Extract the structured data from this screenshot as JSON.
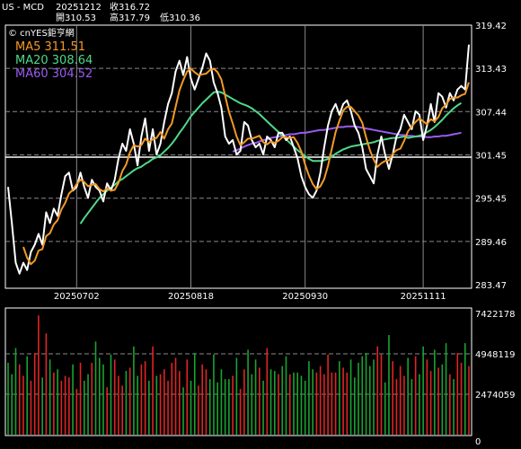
{
  "header": {
    "symbol": "US - MCD",
    "date": "20251212",
    "close_label": "收316.72",
    "open_label": "開310.53",
    "high_label": "高317.79",
    "low_label": "低310.36"
  },
  "brand": "© cnYES鉅亨網",
  "colors": {
    "background": "#000000",
    "price": "#ffffff",
    "ma5": "#f29a27",
    "ma20": "#4fd98a",
    "ma60": "#9a5cf0",
    "vol_up": "#e02424",
    "vol_down": "#1aa331",
    "grid": "#8a8a8a"
  },
  "chart_data": [
    {
      "type": "line",
      "panel": "price",
      "y_ticks": [
        "319.42",
        "313.43",
        "307.44",
        "301.45",
        "295.45",
        "289.46",
        "283.47"
      ],
      "x_ticks": [
        "20250702",
        "20250818",
        "20250930",
        "20251111"
      ],
      "ylim": [
        283.47,
        319.42
      ],
      "legend": [
        {
          "name": "MA5",
          "value": "311.51"
        },
        {
          "name": "MA20",
          "value": "308.64"
        },
        {
          "name": "MA60",
          "value": "304.52"
        }
      ],
      "series": [
        {
          "name": "Close",
          "values": [
            297,
            292,
            286.5,
            285,
            286.5,
            285.5,
            288,
            289,
            290.5,
            289,
            293.5,
            292,
            294,
            293,
            296,
            298.5,
            299,
            296.5,
            297,
            299,
            297,
            295.5,
            298,
            297,
            296.5,
            295,
            297.5,
            296.5,
            298,
            301,
            303,
            302,
            305,
            303,
            300,
            304,
            306.5,
            302,
            305,
            301.5,
            303,
            306,
            308.5,
            310,
            313,
            314.5,
            312.5,
            315,
            312,
            310.5,
            312,
            313.5,
            315.5,
            314.5,
            311.5,
            310,
            308,
            304,
            303,
            303.5,
            301.5,
            302,
            306,
            305.5,
            303.5,
            302.5,
            303,
            301.5,
            304,
            303.5,
            302.5,
            304.5,
            304.5,
            303.5,
            304,
            302.5,
            301,
            298.5,
            297,
            296,
            295.5,
            296.5,
            299,
            302.5,
            305.5,
            307.5,
            308.5,
            307,
            308.5,
            309,
            307.5,
            305.5,
            304.5,
            302.5,
            299.5,
            298.5,
            297.5,
            301.5,
            304,
            301.5,
            299.5,
            301.5,
            304,
            305,
            307,
            306,
            305,
            307.5,
            307,
            303.5,
            305.5,
            308.5,
            306,
            310,
            309.5,
            308,
            310,
            309,
            310.5,
            311,
            310.5,
            316.72
          ]
        },
        {
          "name": "MA5",
          "values": [
            null,
            null,
            null,
            null,
            288.7,
            287.2,
            286.3,
            286.8,
            288.2,
            288.4,
            290.2,
            290.6,
            291.8,
            292.4,
            293.9,
            294.8,
            296.1,
            296.6,
            297.4,
            298,
            297.7,
            297.1,
            297.3,
            297.4,
            296.7,
            296.4,
            296.8,
            296.5,
            296.6,
            297.6,
            299.2,
            300.1,
            301.8,
            302.8,
            302.6,
            302.8,
            303.7,
            303.2,
            303.6,
            303.8,
            304.6,
            303.7,
            305,
            305.8,
            308.1,
            310.4,
            311.8,
            313,
            313.4,
            312.9,
            312.5,
            312.6,
            312.7,
            313.2,
            313.4,
            312.9,
            311.9,
            309.6,
            307.4,
            305.8,
            304,
            302.8,
            303.2,
            303.7,
            303.7,
            303.9,
            304.1,
            303.2,
            302.9,
            303.3,
            303.1,
            303.4,
            303.9,
            303.9,
            303.8,
            303.9,
            303.1,
            301.9,
            300.1,
            298.6,
            297.4,
            296.7,
            297.1,
            298.1,
            299.9,
            302.3,
            304.6,
            306.2,
            307.6,
            308.1,
            308.1,
            307.5,
            306.9,
            305.9,
            303.9,
            302.1,
            300.8,
            299.8,
            300.3,
            300.6,
            300.7,
            301.6,
            302.1,
            302.3,
            303.4,
            304.7,
            305.4,
            306,
            306.5,
            306.1,
            305.7,
            306.4,
            306.1,
            306.7,
            307.9,
            308.4,
            309.2,
            309.4,
            309.4,
            309.7,
            309.9,
            311.5
          ]
        },
        {
          "name": "MA20",
          "values": [
            null,
            null,
            null,
            null,
            null,
            null,
            null,
            null,
            null,
            null,
            null,
            null,
            null,
            null,
            null,
            null,
            null,
            null,
            null,
            291.9,
            292.7,
            293.4,
            294.1,
            294.8,
            295.5,
            296,
            296.5,
            296.9,
            297.3,
            297.8,
            298.1,
            298.5,
            298.9,
            299.3,
            299.6,
            299.8,
            300.2,
            300.5,
            300.9,
            301.1,
            301.4,
            301.9,
            302.4,
            303,
            303.7,
            304.5,
            305.2,
            306,
            306.8,
            307.4,
            308,
            308.6,
            309.1,
            309.6,
            310.1,
            310.2,
            310.1,
            309.8,
            309.5,
            309.2,
            308.9,
            308.6,
            308.4,
            308.2,
            307.9,
            307.5,
            307.1,
            306.6,
            306.1,
            305.6,
            305.1,
            304.6,
            304.1,
            303.6,
            303.1,
            302.6,
            302.1,
            301.7,
            301.3,
            300.9,
            300.6,
            300.6,
            300.6,
            300.7,
            300.9,
            301.2,
            301.6,
            301.9,
            302.2,
            302.4,
            302.6,
            302.7,
            302.8,
            302.9,
            303,
            303.1,
            303.2,
            303.4,
            303.5,
            303.6,
            303.7,
            303.8,
            303.8,
            303.9,
            304,
            303.8,
            303.9,
            304,
            304.1,
            304.3,
            304.6,
            304.9,
            305.3,
            305.8,
            306.3,
            306.9,
            307.4,
            307.9,
            308.3,
            308.64
          ]
        },
        {
          "name": "MA60",
          "values": [
            null,
            null,
            null,
            null,
            null,
            null,
            null,
            null,
            null,
            null,
            null,
            null,
            null,
            null,
            null,
            null,
            null,
            null,
            null,
            null,
            null,
            null,
            null,
            null,
            null,
            null,
            null,
            null,
            null,
            null,
            null,
            null,
            null,
            null,
            null,
            null,
            null,
            null,
            null,
            null,
            null,
            null,
            null,
            null,
            null,
            null,
            null,
            null,
            null,
            null,
            null,
            null,
            null,
            null,
            null,
            null,
            null,
            null,
            null,
            301.9,
            302.1,
            302.3,
            302.6,
            302.8,
            303,
            303.1,
            303.3,
            303.5,
            303.6,
            303.8,
            303.9,
            304,
            304.1,
            304.2,
            304.3,
            304.3,
            304.4,
            304.5,
            304.5,
            304.6,
            304.7,
            304.8,
            304.9,
            304.9,
            305,
            305.1,
            305.2,
            305.3,
            305.3,
            305.4,
            305.4,
            305.4,
            305.3,
            305.2,
            305.1,
            305,
            304.9,
            304.8,
            304.7,
            304.6,
            304.5,
            304.4,
            304.3,
            304.2,
            304.2,
            304.1,
            304.1,
            304,
            304,
            304,
            303.9,
            303.9,
            304,
            304,
            304.1,
            304.1,
            304.2,
            304.3,
            304.4,
            304.52
          ]
        }
      ]
    },
    {
      "type": "bar",
      "panel": "volume",
      "y_ticks": [
        "7422178",
        "4948119",
        "2474059",
        "0"
      ],
      "ylim": [
        0,
        7422178
      ],
      "series": [
        {
          "name": "Volume",
          "values": [
            4400000,
            3700000,
            5300000,
            4300000,
            3600000,
            4800000,
            3300000,
            5000000,
            7300000,
            3500000,
            6200000,
            4600000,
            3800000,
            4000000,
            3300000,
            3600000,
            3500000,
            4300000,
            2800000,
            4400000,
            3300000,
            3700000,
            4400000,
            5700000,
            4700000,
            4300000,
            2900000,
            4900000,
            4600000,
            3600000,
            3000000,
            3900000,
            4100000,
            5400000,
            3600000,
            4300000,
            4500000,
            3300000,
            5400000,
            3600000,
            3700000,
            4000000,
            3300000,
            4400000,
            4700000,
            3900000,
            2900000,
            4600000,
            3300000,
            5000000,
            3000000,
            4300000,
            4000000,
            3400000,
            4900000,
            3200000,
            4000000,
            3400000,
            3400000,
            3600000,
            4700000,
            2800000,
            4000000,
            5200000,
            3700000,
            4600000,
            4100000,
            3300000,
            5300000,
            4000000,
            3900000,
            3700000,
            4200000,
            4800000,
            3700000,
            3800000,
            3800000,
            3600000,
            3300000,
            4500000,
            4000000,
            3800000,
            4200000,
            3700000,
            4900000,
            3800000,
            3800000,
            4500000,
            4100000,
            3800000,
            4600000,
            3500000,
            4400000,
            4800000,
            5000000,
            4200000,
            4600000,
            5400000,
            4900000,
            3200000,
            6100000,
            4500000,
            3400000,
            4200000,
            3600000,
            4700000,
            3400000,
            4800000,
            3700000,
            5400000,
            4600000,
            3900000,
            5200000,
            4100000,
            4300000,
            5600000,
            3700000,
            3400000,
            5000000,
            4400000,
            5600000,
            4200000
          ]
        },
        {
          "name": "Direction",
          "values": [
            0,
            0,
            0,
            1,
            1,
            0,
            1,
            1,
            1,
            0,
            1,
            0,
            1,
            0,
            1,
            1,
            1,
            0,
            1,
            1,
            0,
            0,
            1,
            0,
            0,
            0,
            1,
            0,
            1,
            1,
            1,
            0,
            1,
            0,
            0,
            1,
            1,
            0,
            1,
            0,
            1,
            1,
            1,
            1,
            1,
            1,
            0,
            1,
            0,
            0,
            1,
            1,
            1,
            0,
            0,
            0,
            0,
            0,
            0,
            1,
            0,
            1,
            1,
            0,
            0,
            0,
            1,
            0,
            1,
            0,
            0,
            1,
            0,
            0,
            1,
            0,
            0,
            0,
            0,
            0,
            0,
            1,
            1,
            1,
            1,
            1,
            1,
            0,
            1,
            1,
            0,
            0,
            0,
            0,
            0,
            0,
            0,
            1,
            1,
            0,
            0,
            1,
            1,
            1,
            1,
            0,
            0,
            1,
            0,
            0,
            1,
            1,
            0,
            1,
            0,
            0,
            1,
            0,
            1,
            1,
            0,
            1
          ]
        }
      ]
    }
  ]
}
